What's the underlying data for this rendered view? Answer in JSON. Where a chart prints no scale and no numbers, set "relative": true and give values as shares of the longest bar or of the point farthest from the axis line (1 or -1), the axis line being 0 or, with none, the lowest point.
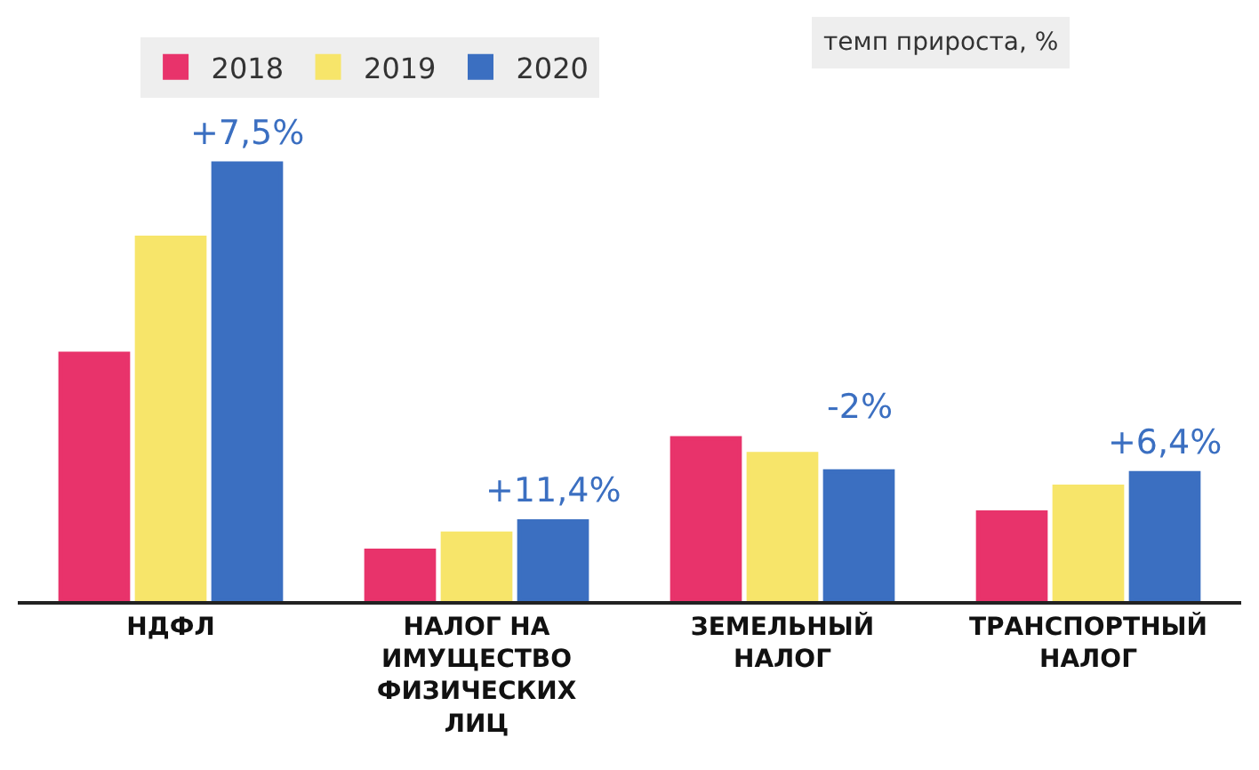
{
  "chart_data": {
    "type": "bar",
    "relative": true,
    "categories": [
      "НДФЛ",
      "НАЛОГ НА ИМУЩЕСТВО ФИЗИЧЕСКИХ ЛИЦ",
      "ЗЕМЕЛЬНЫЙ НАЛОГ",
      "ТРАНСПОРТНЫЙ НАЛОГ"
    ],
    "series": [
      {
        "name": "2018",
        "color": "#e8336b",
        "values": [
          0.565,
          0.115,
          0.372,
          0.202
        ]
      },
      {
        "name": "2019",
        "color": "#f7e56a",
        "values": [
          0.83,
          0.154,
          0.336,
          0.261
        ]
      },
      {
        "name": "2020",
        "color": "#3b6fc1",
        "values": [
          1,
          0.182,
          0.296,
          0.292
        ]
      }
    ],
    "annotations": [
      "темп прироста, %",
      "+7,5%",
      "+11,4%",
      "-2%",
      "+6,4%"
    ],
    "legend": "top"
  }
}
